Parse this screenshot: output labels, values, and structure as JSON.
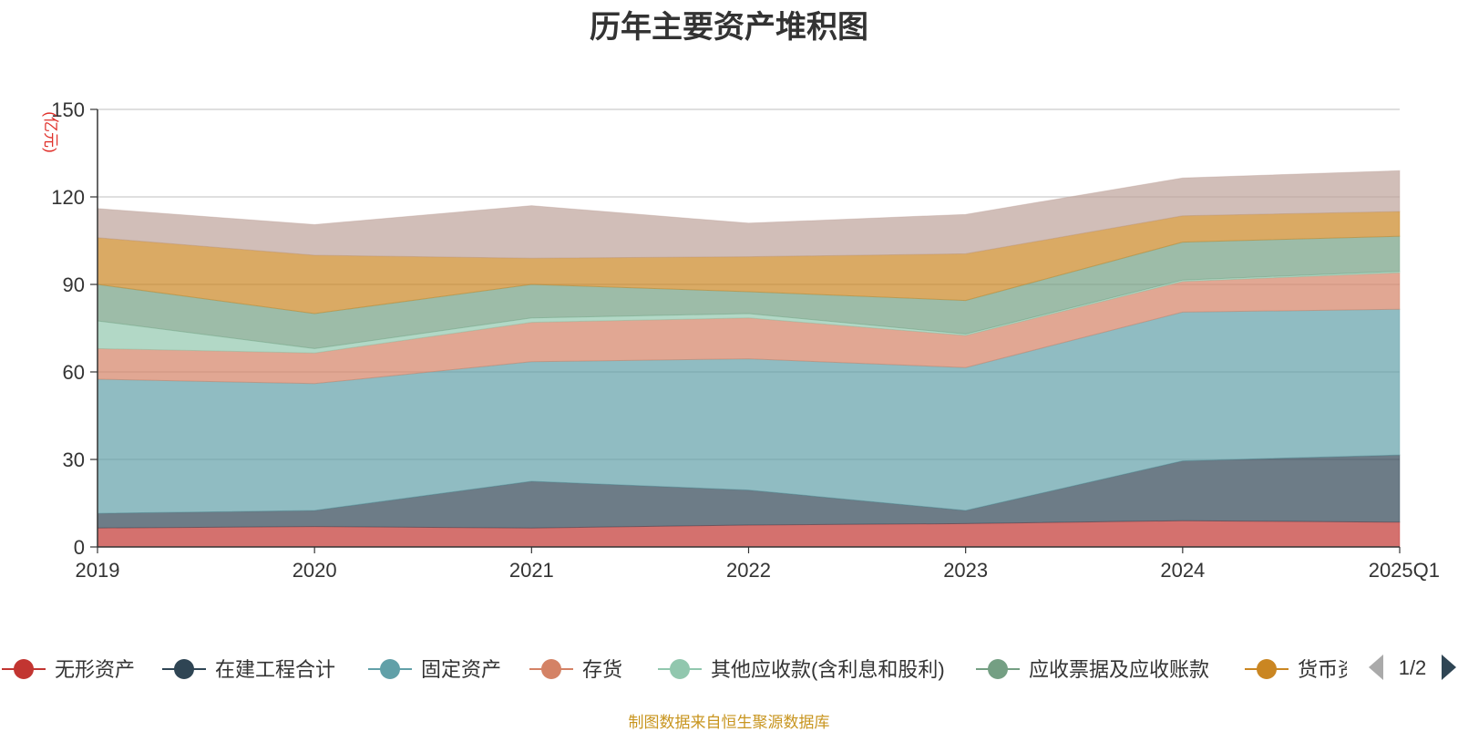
{
  "chart_data": {
    "type": "area",
    "stacked": true,
    "title": "历年主要资产堆积图",
    "ylabel": "(亿元)",
    "xlabel": "",
    "ylim": [
      0,
      150
    ],
    "yticks": [
      0,
      30,
      60,
      90,
      120,
      150
    ],
    "categories": [
      "2019",
      "2020",
      "2021",
      "2022",
      "2023",
      "2024",
      "2025Q1"
    ],
    "grid": true,
    "legend_position": "bottom",
    "series": [
      {
        "name": "无形资产",
        "color": "#c23531",
        "values": [
          6.5,
          7.0,
          6.5,
          7.5,
          8.0,
          9.0,
          8.5
        ]
      },
      {
        "name": "在建工程合计",
        "color": "#2f4554",
        "values": [
          5.0,
          5.5,
          16.0,
          12.0,
          4.5,
          20.5,
          23.0
        ]
      },
      {
        "name": "固定资产",
        "color": "#61a0a8",
        "values": [
          46.0,
          43.5,
          41.0,
          45.0,
          49.0,
          51.0,
          50.0
        ]
      },
      {
        "name": "存货",
        "color": "#d48265",
        "values": [
          10.5,
          10.5,
          13.5,
          14.0,
          11.0,
          10.5,
          12.5
        ]
      },
      {
        "name": "其他应收款(含利息和股利)",
        "color": "#91c7ae",
        "values": [
          9.5,
          1.5,
          1.5,
          1.5,
          0.5,
          0.5,
          0.5
        ]
      },
      {
        "name": "应收票据及应收账款",
        "color": "#749f83",
        "values": [
          12.5,
          12.0,
          11.5,
          7.5,
          11.5,
          13.0,
          12.0
        ]
      },
      {
        "name": "货币资金",
        "color": "#ca8622",
        "values": [
          16.0,
          20.0,
          9.0,
          12.0,
          16.0,
          9.0,
          8.5
        ]
      },
      {
        "name": "",
        "color": "#bda29a",
        "values": [
          10.0,
          10.5,
          18.0,
          11.5,
          13.5,
          13.0,
          14.0
        ]
      }
    ]
  },
  "legend": {
    "page_indicator": "1/2",
    "visible_labels": [
      "无形资产",
      "在建工程合计",
      "固定资产",
      "存货",
      "其他应收款(含利息和股利)",
      "应收票据及应收账款",
      "货币资"
    ]
  },
  "source_note": "制图数据来自恒生聚源数据库"
}
